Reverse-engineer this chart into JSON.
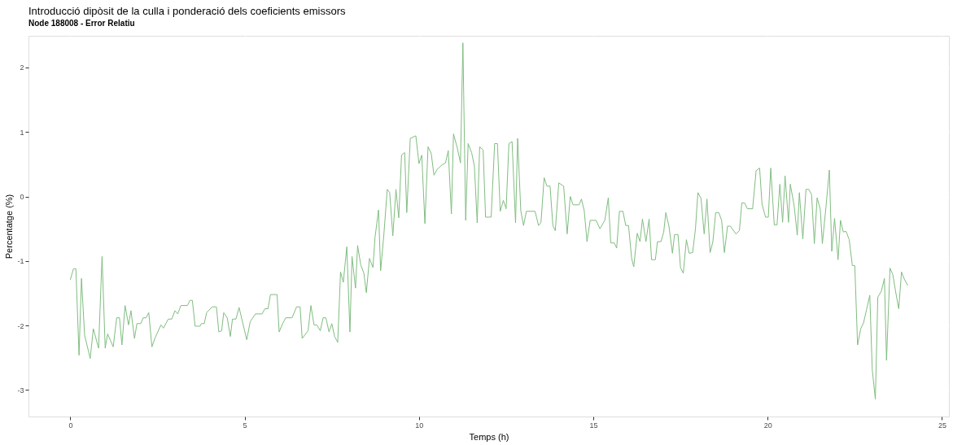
{
  "chart_data": {
    "type": "line",
    "title": "Introducció dipòsit de la culla i ponderació dels coeficients emissors",
    "subtitle": "Node 188008 - Error Relatiu",
    "xlabel": "Temps (h)",
    "ylabel": "Percentatge (%)",
    "x": [
      0,
      0.09,
      0.16,
      0.25,
      0.32,
      0.41,
      0.57,
      0.66,
      0.81,
      0.91,
      1.0,
      1.07,
      1.23,
      1.33,
      1.41,
      1.48,
      1.57,
      1.67,
      1.74,
      1.84,
      1.91,
      2.02,
      2.09,
      2.17,
      2.25,
      2.34,
      2.44,
      2.6,
      2.67,
      2.81,
      2.91,
      3.0,
      3.08,
      3.17,
      3.36,
      3.43,
      3.5,
      3.58,
      3.72,
      3.76,
      3.84,
      3.91,
      4.07,
      4.19,
      4.26,
      4.34,
      4.4,
      4.5,
      4.59,
      4.65,
      4.75,
      4.84,
      5.06,
      5.16,
      5.31,
      5.5,
      5.58,
      5.67,
      5.74,
      5.93,
      5.99,
      6.09,
      6.18,
      6.36,
      6.49,
      6.59,
      6.65,
      6.82,
      6.9,
      6.99,
      7.07,
      7.17,
      7.25,
      7.33,
      7.42,
      7.5,
      7.58,
      7.67,
      7.75,
      7.83,
      7.93,
      8.02,
      8.08,
      8.18,
      8.24,
      8.33,
      8.42,
      8.49,
      8.58,
      8.68,
      8.74,
      8.84,
      8.9,
      8.99,
      9.09,
      9.16,
      9.25,
      9.34,
      9.42,
      9.5,
      9.59,
      9.65,
      9.75,
      9.91,
      10.0,
      10.08,
      10.17,
      10.26,
      10.35,
      10.43,
      10.52,
      10.66,
      10.76,
      10.84,
      10.93,
      10.99,
      11.1,
      11.19,
      11.26,
      11.29,
      11.34,
      11.41,
      11.51,
      11.59,
      11.67,
      11.74,
      11.84,
      11.91,
      12.07,
      12.17,
      12.25,
      12.33,
      12.42,
      12.5,
      12.58,
      12.67,
      12.77,
      12.83,
      12.92,
      13.0,
      13.08,
      13.33,
      13.43,
      13.5,
      13.59,
      13.67,
      13.76,
      13.84,
      13.91,
      14.01,
      14.15,
      14.25,
      14.34,
      14.42,
      14.59,
      14.66,
      14.74,
      14.82,
      14.91,
      15.08,
      15.19,
      15.33,
      15.43,
      15.5,
      15.6,
      15.67,
      15.75,
      15.85,
      15.93,
      16.01,
      16.1,
      16.16,
      16.26,
      16.34,
      16.41,
      16.51,
      16.6,
      16.67,
      16.78,
      16.84,
      16.94,
      17.02,
      17.08,
      17.17,
      17.27,
      17.33,
      17.43,
      17.5,
      17.58,
      17.67,
      17.75,
      17.85,
      17.93,
      18.0,
      18.09,
      18.18,
      18.26,
      18.35,
      18.43,
      18.51,
      18.6,
      18.68,
      18.76,
      18.85,
      18.93,
      19.09,
      19.19,
      19.26,
      19.34,
      19.42,
      19.57,
      19.67,
      19.77,
      19.84,
      19.94,
      20.02,
      20.09,
      20.19,
      20.27,
      20.35,
      20.43,
      20.5,
      20.6,
      20.65,
      20.76,
      20.85,
      20.91,
      21.01,
      21.1,
      21.18,
      21.26,
      21.34,
      21.42,
      21.51,
      21.57,
      21.67,
      21.77,
      21.84,
      21.92,
      22.02,
      22.09,
      22.17,
      22.25,
      22.34,
      22.43,
      22.5,
      22.58,
      22.67,
      22.75,
      22.84,
      22.93,
      23.0,
      23.09,
      23.16,
      23.26,
      23.35,
      23.41,
      23.51,
      23.59,
      23.67,
      23.76,
      23.84,
      23.92,
      24.02
    ],
    "series": [
      {
        "color": "#80bd80",
        "values": [
          -1.29,
          -1.12,
          -1.12,
          -2.46,
          -1.27,
          -2.15,
          -2.51,
          -2.05,
          -2.35,
          -0.93,
          -2.35,
          -2.13,
          -2.33,
          -1.88,
          -1.88,
          -2.3,
          -1.69,
          -1.99,
          -1.77,
          -2.2,
          -1.97,
          -1.97,
          -1.88,
          -1.88,
          -1.8,
          -2.33,
          -2.18,
          -1.99,
          -2.04,
          -1.9,
          -1.9,
          -1.77,
          -1.82,
          -1.69,
          -1.69,
          -1.61,
          -1.61,
          -2.01,
          -2.01,
          -1.97,
          -1.97,
          -1.8,
          -1.71,
          -1.71,
          -2.1,
          -2.08,
          -1.8,
          -1.88,
          -2.17,
          -1.9,
          -1.9,
          -1.72,
          -2.22,
          -1.94,
          -1.82,
          -1.82,
          -1.74,
          -1.74,
          -1.52,
          -1.52,
          -2.1,
          -1.97,
          -1.88,
          -1.88,
          -1.71,
          -1.71,
          -2.2,
          -2.08,
          -1.69,
          -1.99,
          -1.99,
          -2.08,
          -1.88,
          -1.88,
          -2.1,
          -1.97,
          -2.17,
          -2.26,
          -1.17,
          -1.33,
          -0.78,
          -2.1,
          -0.93,
          -1.42,
          -0.76,
          -1.06,
          -1.19,
          -1.49,
          -0.96,
          -1.1,
          -0.63,
          -0.21,
          -1.15,
          -0.61,
          0.11,
          0.06,
          -0.61,
          0.11,
          -0.33,
          0.64,
          0.68,
          -0.25,
          0.9,
          0.94,
          0.51,
          0.64,
          -0.42,
          0.77,
          0.67,
          0.33,
          0.42,
          0.49,
          0.52,
          0.71,
          -0.27,
          0.97,
          0.75,
          0.52,
          2.38,
          1.33,
          -0.37,
          0.82,
          0.68,
          0.47,
          -0.41,
          0.77,
          0.72,
          -0.32,
          -0.32,
          0.82,
          0.82,
          -0.23,
          -0.06,
          -0.19,
          0.82,
          0.85,
          -0.41,
          0.9,
          -0.22,
          -0.45,
          -0.23,
          -0.23,
          -0.45,
          -0.4,
          0.29,
          0.16,
          0.16,
          -0.45,
          -0.53,
          0.21,
          0.16,
          -0.58,
          0.0,
          -0.13,
          -0.13,
          -0.04,
          -0.22,
          -0.7,
          -0.37,
          -0.37,
          -0.5,
          -0.37,
          -0.02,
          -0.72,
          -0.72,
          -0.8,
          -0.23,
          -0.23,
          -0.45,
          -0.45,
          -0.96,
          -1.09,
          -0.57,
          -0.7,
          -0.35,
          -0.7,
          -0.35,
          -0.98,
          -0.98,
          -0.7,
          -0.7,
          -0.55,
          -0.25,
          -0.46,
          -0.88,
          -0.59,
          -0.59,
          -1.1,
          -1.19,
          -0.67,
          -0.88,
          -0.87,
          -0.5,
          0.06,
          -0.03,
          -0.58,
          -0.04,
          -0.87,
          -0.7,
          -0.25,
          -0.25,
          -0.37,
          -0.87,
          -0.46,
          -0.46,
          -0.58,
          -0.53,
          -0.1,
          -0.1,
          -0.19,
          -0.19,
          0.4,
          0.44,
          -0.12,
          -0.32,
          -0.32,
          0.44,
          -0.44,
          -0.44,
          0.19,
          -0.4,
          0.32,
          -0.4,
          0.19,
          -0.14,
          -0.6,
          0.06,
          -0.66,
          0.11,
          0.11,
          0.03,
          -0.73,
          -0.02,
          -0.2,
          -0.73,
          -0.18,
          0.41,
          -0.85,
          -0.34,
          -0.98,
          -0.37,
          -0.55,
          -0.54,
          -0.67,
          -1.07,
          -1.07,
          -2.3,
          -2.05,
          -1.96,
          -1.75,
          -1.53,
          -2.68,
          -3.14,
          -1.56,
          -1.47,
          -1.27,
          -2.54,
          -1.11,
          -1.21,
          -1.47,
          -1.74,
          -1.17,
          -1.28,
          -1.38
        ]
      }
    ],
    "xlim": [
      -1.2,
      25.2
    ],
    "ylim": [
      -3.41,
      2.49
    ],
    "xticks": [
      0,
      5,
      10,
      15,
      20,
      25
    ],
    "yticks": [
      -3,
      -2,
      -1,
      0,
      1,
      2
    ],
    "grid": true,
    "line_style": "solid"
  }
}
